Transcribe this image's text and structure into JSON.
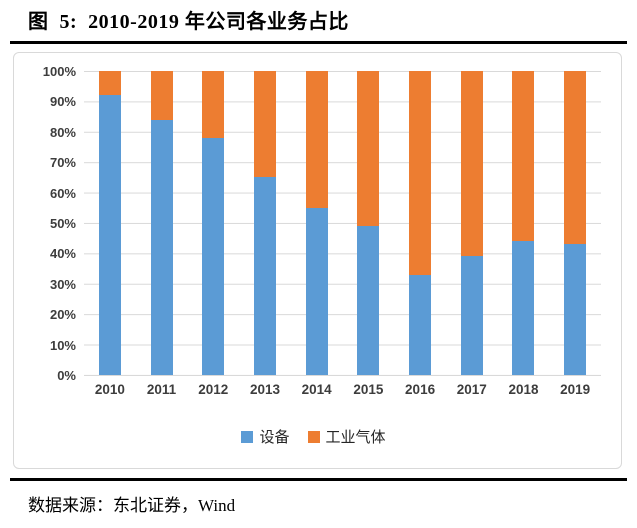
{
  "figure": {
    "title": "图  5:  2010-2019 年公司各业务占比",
    "source": "数据来源：东北证券，Wind"
  },
  "chart_data": {
    "type": "bar",
    "stacked": true,
    "title": "",
    "xlabel": "",
    "ylabel": "",
    "unit": "percent",
    "categories": [
      "2010",
      "2011",
      "2012",
      "2013",
      "2014",
      "2015",
      "2016",
      "2017",
      "2018",
      "2019"
    ],
    "series": [
      {
        "name": "设备",
        "color": "#5B9BD5",
        "values": [
          92,
          84,
          78,
          65,
          55,
          49,
          33,
          39,
          44,
          43
        ]
      },
      {
        "name": "工业气体",
        "color": "#ED7D31",
        "values": [
          8,
          16,
          22,
          35,
          45,
          51,
          67,
          61,
          56,
          57
        ]
      }
    ],
    "ylim": [
      0,
      100
    ],
    "ytick_labels": [
      "0%",
      "10%",
      "20%",
      "30%",
      "40%",
      "50%",
      "60%",
      "70%",
      "80%",
      "90%",
      "100%"
    ],
    "grid": true,
    "legend_position": "bottom"
  },
  "colors": {
    "series_blue": "#5B9BD5",
    "series_orange": "#ED7D31",
    "gridline": "#D9D9D9",
    "frame_border": "#D9D9D9",
    "axis_text": "#3D3D3D",
    "divider": "#000000"
  }
}
